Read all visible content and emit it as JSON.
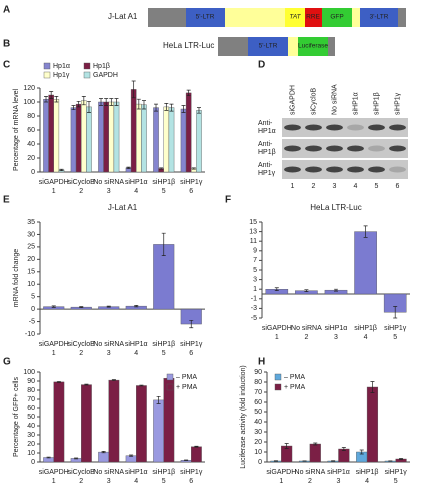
{
  "panel_labels": [
    "A",
    "B",
    "C",
    "D",
    "E",
    "F",
    "G",
    "H"
  ],
  "constructs": [
    {
      "name": "J-Lat A1",
      "labels": [
        "5'-LTR",
        "TAT",
        "RRE",
        "GFP",
        "3'-LTR"
      ]
    },
    {
      "name": "HeLa LTR-Luc",
      "labels": [
        "5'-LTR",
        "Luciferase"
      ]
    }
  ],
  "blot": {
    "lanes": [
      "siGAPDH",
      "siCycloB",
      "No siRNA",
      "siHP1α",
      "siHP1β",
      "siHP1γ"
    ],
    "rows": [
      [
        "Anti-",
        "HP1α"
      ],
      [
        "Anti-",
        "HP1β"
      ],
      [
        "Anti-",
        "HP1γ"
      ]
    ],
    "lane_numbers": [
      1,
      2,
      3,
      4,
      5,
      6
    ]
  },
  "chart_data": [
    {
      "type": "bar",
      "ylabel": "Percentage of mRNA level",
      "categories": [
        "siGAPDH",
        "siCycloB",
        "No siRNA",
        "siHP1α",
        "siHP1β",
        "siHP1γ"
      ],
      "category_numbers": [
        1,
        2,
        3,
        4,
        5,
        6
      ],
      "series": [
        {
          "name": "Hp1α",
          "color": "#8585cf",
          "values": [
            104,
            92,
            100,
            6,
            92,
            90
          ],
          "errors": [
            4,
            3,
            5,
            1,
            5,
            5
          ]
        },
        {
          "name": "Hp1β",
          "color": "#7b1f45",
          "values": [
            110,
            97,
            100,
            118,
            5,
            113
          ],
          "errors": [
            5,
            4,
            5,
            12,
            1,
            4
          ]
        },
        {
          "name": "Hp1γ",
          "color": "#ffffcc",
          "values": [
            104,
            102,
            100,
            97,
            93,
            5
          ],
          "errors": [
            4,
            6,
            5,
            7,
            5,
            1
          ]
        },
        {
          "name": "GAPDH",
          "color": "#b3e3e3",
          "values": [
            3,
            93,
            100,
            96,
            92,
            88
          ],
          "errors": [
            1,
            8,
            5,
            6,
            5,
            4
          ]
        }
      ],
      "ylim": [
        0,
        120
      ],
      "yticks": [
        0,
        20,
        40,
        60,
        80,
        100,
        120
      ],
      "legend": "top-left"
    },
    {
      "type": "bar",
      "title": "J-Lat A1",
      "ylabel": "mRNA fold change",
      "categories": [
        "siGAPDH",
        "siCycloB",
        "No siRNA",
        "siHP1α",
        "siHP1β",
        "siHP1γ"
      ],
      "category_numbers": [
        1,
        2,
        3,
        4,
        5,
        6
      ],
      "values": [
        1,
        0.8,
        1,
        1.2,
        26,
        -6
      ],
      "errors": [
        0.3,
        0.2,
        0.2,
        0.3,
        4.5,
        1.5
      ],
      "color": "#7b7bd0",
      "ylim": [
        -10,
        35
      ],
      "yticks": [
        -10,
        -5,
        0,
        5,
        10,
        15,
        20,
        25,
        30,
        35
      ]
    },
    {
      "type": "bar",
      "title": "HeLa LTR-Luc",
      "categories": [
        "siGAPDH",
        "No siRNA",
        "siHP1α",
        "siHP1β",
        "siHP1γ"
      ],
      "category_numbers": [
        1,
        2,
        3,
        4,
        5
      ],
      "values": [
        1,
        0.7,
        0.8,
        13,
        -3.8
      ],
      "errors": [
        0.3,
        0.2,
        0.2,
        1.2,
        1.2
      ],
      "color": "#7b7bd0",
      "ylim": [
        -5,
        15
      ],
      "yticks": [
        -5,
        -3,
        -1,
        1,
        3,
        5,
        7,
        9,
        11,
        13,
        15
      ]
    },
    {
      "type": "bar",
      "ylabel": "Percentage of GFP+ cells",
      "categories": [
        "siGAPDH",
        "siCycloB",
        "No siRNA",
        "siHP1α",
        "siHP1β",
        "siHP1γ"
      ],
      "category_numbers": [
        1,
        2,
        3,
        4,
        5,
        6
      ],
      "series": [
        {
          "name": "– PMA",
          "color": "#9a9ae0",
          "values": [
            5,
            4,
            11,
            7,
            69,
            2
          ],
          "errors": [
            0.5,
            0.5,
            0.8,
            0.8,
            4,
            0.3
          ]
        },
        {
          "name": "+ PMA",
          "color": "#7b1f45",
          "values": [
            89,
            86,
            91,
            85,
            93,
            17
          ],
          "errors": [
            0.5,
            0.5,
            0.5,
            0.5,
            0.8,
            0.5
          ]
        }
      ],
      "ylim": [
        0,
        100
      ],
      "yticks": [
        0,
        10,
        20,
        30,
        40,
        50,
        60,
        70,
        80,
        90,
        100
      ],
      "legend": "top-right"
    },
    {
      "type": "bar",
      "ylabel": "Luciferase activity (fold induction)",
      "categories": [
        "siGAPDH",
        "No siRNA",
        "siHP1α",
        "siHP1β",
        "siHP1γ"
      ],
      "category_numbers": [
        1,
        2,
        3,
        4,
        5
      ],
      "series": [
        {
          "name": "– PMA",
          "color": "#5fa8dc",
          "values": [
            1,
            1,
            1,
            10,
            1
          ],
          "errors": [
            0.3,
            0.2,
            0.3,
            2,
            0.2
          ]
        },
        {
          "name": "+ PMA",
          "color": "#7b1f45",
          "values": [
            16,
            18,
            13,
            75,
            3
          ],
          "errors": [
            2.5,
            1,
            1.5,
            5.5,
            0.5
          ]
        }
      ],
      "ylim": [
        0,
        90
      ],
      "yticks": [
        0,
        10,
        20,
        30,
        40,
        50,
        60,
        70,
        80,
        90
      ],
      "legend": "top-left"
    }
  ]
}
